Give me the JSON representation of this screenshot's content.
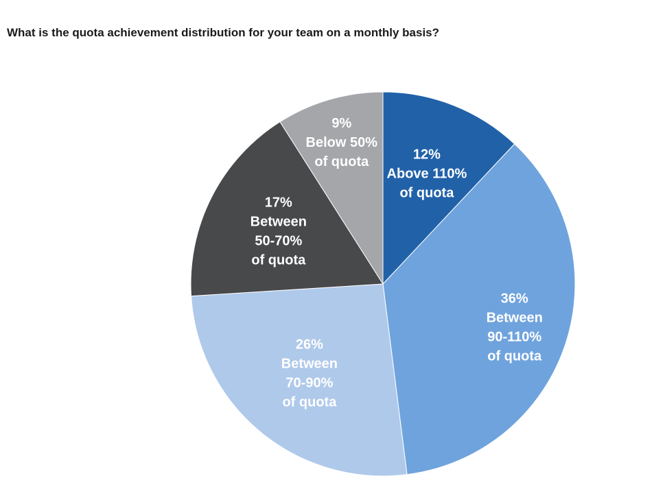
{
  "chart_data": {
    "type": "pie",
    "title": "What is the quota achievement distribution for your team on a monthly basis?",
    "slices": [
      {
        "value": 12,
        "label_lines": [
          "12%",
          "Above 110%",
          "of quota"
        ],
        "color": "#2161a8"
      },
      {
        "value": 36,
        "label_lines": [
          "36%",
          "Between",
          "90-110%",
          "of quota"
        ],
        "color": "#6fa3dd"
      },
      {
        "value": 26,
        "label_lines": [
          "26%",
          "Between",
          "70-90%",
          "of quota"
        ],
        "color": "#afc9ea"
      },
      {
        "value": 17,
        "label_lines": [
          "17%",
          "Between",
          "50-70%",
          "of quota"
        ],
        "color": "#48494b"
      },
      {
        "value": 9,
        "label_lines": [
          "9%",
          "Below 50%",
          "of quota"
        ],
        "color": "#a5a6a9"
      }
    ],
    "start_direction": "top",
    "clockwise": true,
    "legend": "none"
  }
}
